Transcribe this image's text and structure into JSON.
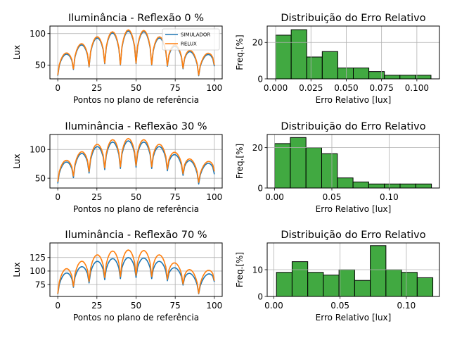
{
  "colors": {
    "simulador": "#1f77b4",
    "relux": "#ff7f0e",
    "hist": "#2ca02c"
  },
  "chart_data": [
    {
      "type": "line",
      "title": "Iluminância - Reflexão 0 %",
      "xlabel": "Pontos no plano de referência",
      "ylabel": "Lux",
      "xlim": [
        -5,
        105
      ],
      "ylim": [
        28,
        112
      ],
      "xticks": [
        0,
        25,
        50,
        75,
        100
      ],
      "yticks": [
        50,
        100
      ],
      "grid": true,
      "legend": {
        "position": "upper-right",
        "entries": [
          "SIMULADOR",
          "RELUX"
        ]
      },
      "periods": 10,
      "points_per_period": 10,
      "series": [
        {
          "name": "SIMULADOR",
          "mins": [
            33,
            43,
            47,
            52,
            50,
            52,
            50,
            48,
            44,
            33,
            48
          ],
          "maxs": [
            67,
            82,
            93,
            101,
            104,
            103,
            93,
            80,
            71,
            66
          ]
        },
        {
          "name": "RELUX",
          "mins": [
            34,
            44,
            48,
            53,
            51,
            53,
            51,
            49,
            45,
            34,
            50
          ],
          "maxs": [
            69,
            84,
            95,
            103,
            106,
            105,
            95,
            82,
            73,
            68
          ]
        }
      ]
    },
    {
      "type": "bar",
      "title": "Distribuição do Erro Relativo",
      "xlabel": "Erro Relativo [lux]",
      "ylabel": "Freq.[%]",
      "xlim": [
        -0.006,
        0.116
      ],
      "ylim": [
        0,
        29
      ],
      "xticks": [
        "0.000",
        "0.025",
        "0.050",
        "0.075",
        "0.100"
      ],
      "xtick_values": [
        0,
        0.025,
        0.05,
        0.075,
        0.1
      ],
      "yticks": [
        0,
        20
      ],
      "grid": true,
      "bin_edges": [
        0.0,
        0.011,
        0.022,
        0.033,
        0.044,
        0.055,
        0.066,
        0.077,
        0.088,
        0.099,
        0.11
      ],
      "values": [
        24,
        27,
        12,
        15,
        6,
        6,
        4,
        2,
        2,
        2
      ]
    },
    {
      "type": "line",
      "title": "Iluminância - Reflexão 30 %",
      "xlabel": "Pontos no plano de referência",
      "ylabel": "Lux",
      "xlim": [
        -5,
        105
      ],
      "ylim": [
        33,
        126
      ],
      "xticks": [
        0,
        25,
        50,
        75,
        100
      ],
      "yticks": [
        50,
        100
      ],
      "grid": true,
      "periods": 10,
      "points_per_period": 10,
      "series": [
        {
          "name": "SIMULADOR",
          "mins": [
            41,
            51,
            59,
            65,
            67,
            69,
            67,
            63,
            55,
            40,
            57
          ],
          "maxs": [
            78,
            93,
            105,
            113,
            115,
            113,
            105,
            91,
            80,
            75
          ]
        },
        {
          "name": "RELUX",
          "mins": [
            44,
            54,
            62,
            68,
            70,
            72,
            70,
            66,
            58,
            43,
            62
          ],
          "maxs": [
            81,
            96,
            109,
            117,
            119,
            117,
            109,
            95,
            83,
            78
          ]
        }
      ]
    },
    {
      "type": "bar",
      "title": "Distribuição do Erro Relativo",
      "xlabel": "Erro Relativo [lux]",
      "ylabel": "Freq.[%]",
      "xlim": [
        -0.0065,
        0.144
      ],
      "ylim": [
        0,
        26.5
      ],
      "xticks": [
        "0.00",
        "0.05",
        "0.10"
      ],
      "xtick_values": [
        0,
        0.05,
        0.1
      ],
      "yticks": [
        0,
        20
      ],
      "grid": true,
      "bin_edges": [
        0.0,
        0.0137,
        0.0274,
        0.0411,
        0.0548,
        0.0685,
        0.0822,
        0.0959,
        0.1096,
        0.1233,
        0.137
      ],
      "values": [
        22,
        25,
        20,
        17,
        5,
        3,
        2,
        2,
        2,
        2
      ]
    },
    {
      "type": "line",
      "title": "Iluminância - Reflexão 70 %",
      "xlabel": "Pontos no plano de referência",
      "ylabel": "Lux",
      "xlim": [
        -5,
        105
      ],
      "ylim": [
        53,
        152
      ],
      "xticks": [
        0,
        25,
        50,
        75,
        100
      ],
      "yticks": [
        75,
        100,
        125
      ],
      "grid": true,
      "periods": 10,
      "points_per_period": 10,
      "series": [
        {
          "name": "SIMULADOR",
          "mins": [
            57,
            70,
            78,
            84,
            86,
            88,
            86,
            82,
            74,
            58,
            80
          ],
          "maxs": [
            96,
            108,
            118,
            123,
            125,
            124,
            118,
            106,
            95,
            93
          ]
        },
        {
          "name": "RELUX",
          "mins": [
            58,
            72,
            81,
            88,
            90,
            92,
            90,
            85,
            76,
            59,
            82
          ],
          "maxs": [
            104,
            118,
            130,
            137,
            139,
            138,
            130,
            115,
            102,
            100
          ]
        }
      ]
    },
    {
      "type": "bar",
      "title": "Distribuição do Erro Relativo",
      "xlabel": "Erro Relativo [lux]",
      "ylabel": "Freq.[%]",
      "xlim": [
        -0.005,
        0.125
      ],
      "ylim": [
        0,
        20
      ],
      "xticks": [
        "0.00",
        "0.05",
        "0.10"
      ],
      "xtick_values": [
        0,
        0.05,
        0.1
      ],
      "yticks": [
        0,
        10
      ],
      "grid": true,
      "bin_edges": [
        0.002,
        0.0138,
        0.0256,
        0.0374,
        0.0492,
        0.061,
        0.0728,
        0.0846,
        0.0964,
        0.1082,
        0.12
      ],
      "values": [
        9,
        13,
        9,
        8,
        10,
        6,
        19,
        10,
        9,
        7
      ]
    }
  ]
}
